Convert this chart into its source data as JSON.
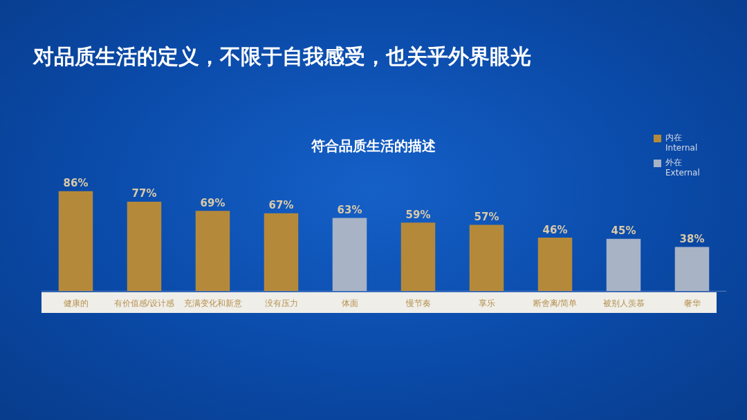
{
  "chart_data": {
    "type": "bar",
    "title": "对品质生活的定义，不限于自我感受，也关乎外界眼光",
    "subtitle": "符合品质生活的描述",
    "categories": [
      "健康的",
      "有价值感/设计感",
      "充满变化和新意",
      "没有压力",
      "体面",
      "慢节奏",
      "享乐",
      "断舍离/简单",
      "被别人羡慕",
      "奢华"
    ],
    "series": [
      {
        "name": "内在\nInternal",
        "color": "#b5893a",
        "values": [
          86,
          77,
          69,
          67,
          null,
          59,
          57,
          46,
          null,
          null
        ],
        "value_labels": [
          "86%",
          "77%",
          "69%",
          "67%",
          null,
          "59%",
          "57%",
          "46%",
          null,
          null
        ]
      },
      {
        "name": "外在\nExternal",
        "color": "#a8b3c5",
        "values": [
          null,
          null,
          null,
          null,
          63,
          null,
          null,
          null,
          45,
          38
        ],
        "value_labels": [
          null,
          null,
          null,
          null,
          "63%",
          null,
          null,
          null,
          "45%",
          "38%"
        ]
      }
    ],
    "legend": "top right",
    "grid": false
  }
}
